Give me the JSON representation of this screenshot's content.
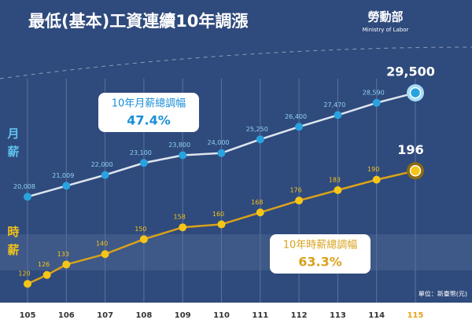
{
  "chart_data": {
    "type": "line",
    "title": "最低(基本)工資連續10年調漲",
    "logo": {
      "name": "勞動部",
      "subtitle": "Ministry of Labor"
    },
    "unit_note": "單位：新臺幣(元)",
    "xlim": [
      105,
      115
    ],
    "xticks": [
      105,
      106,
      107,
      108,
      109,
      110,
      111,
      112,
      113,
      114,
      115
    ],
    "ylim": [
      10700,
      30800
    ],
    "y2lim": [
      110,
      258
    ],
    "series": [
      {
        "name": "月薪",
        "color": "#29a3e0",
        "line_color": "#dde6f0",
        "x": [
          105,
          106,
          107,
          108,
          109,
          110,
          111,
          112,
          113,
          114,
          115
        ],
        "values": [
          20008,
          21009,
          22000,
          23100,
          23800,
          24000,
          25250,
          26400,
          27470,
          28590,
          29500
        ],
        "value_labels": [
          "20,008",
          "21,009",
          "22,000",
          "23,100",
          "23,800",
          "24,000",
          "25,250",
          "26,400",
          "27,470",
          "28,590",
          "29,500"
        ],
        "callout": {
          "text": "10年月薪總調幅",
          "value": "47.4%"
        }
      },
      {
        "name": "時薪",
        "color": "#f5c518",
        "line_color": "#d9a21c",
        "axis": "y2",
        "x": [
          105,
          105.5,
          106,
          107,
          108,
          109,
          110,
          111,
          112,
          113,
          114,
          115
        ],
        "values": [
          120,
          126,
          133,
          140,
          150,
          158,
          160,
          168,
          176,
          183,
          190,
          196
        ],
        "callout": {
          "text": "10年時薪總調幅",
          "value": "63.3%"
        }
      }
    ]
  }
}
